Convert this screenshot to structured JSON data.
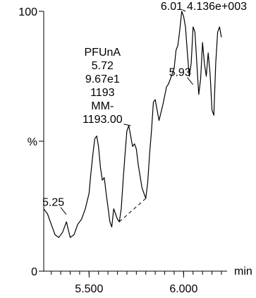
{
  "chart_data": {
    "type": "line",
    "title": "",
    "xlabel": "min",
    "ylabel": "%",
    "xlim": [
      5.26,
      6.23
    ],
    "ylim": [
      0,
      100
    ],
    "x_ticks": [
      {
        "value": 5.5,
        "label": "5.500"
      },
      {
        "value": 6.0,
        "label": "6.000"
      }
    ],
    "y_ticks": [
      {
        "value": 0,
        "label": "0"
      },
      {
        "value": 50,
        "label": "%"
      },
      {
        "value": 100,
        "label": "100"
      }
    ],
    "minor_tick_step": 0.05,
    "grid": false,
    "legend": "none",
    "series": [
      {
        "color": "#000000",
        "x": [
          5.26,
          5.28,
          5.3,
          5.32,
          5.34,
          5.36,
          5.38,
          5.39,
          5.4,
          5.42,
          5.44,
          5.46,
          5.48,
          5.5,
          5.51,
          5.52,
          5.53,
          5.54,
          5.55,
          5.56,
          5.57,
          5.58,
          5.59,
          5.61,
          5.62,
          5.63,
          5.64,
          5.65,
          5.66,
          5.67,
          5.68,
          5.69,
          5.7,
          5.71,
          5.72,
          5.73,
          5.74,
          5.75,
          5.76,
          5.78,
          5.8,
          5.81,
          5.82,
          5.83,
          5.84,
          5.85,
          5.87,
          5.89,
          5.91,
          5.92,
          5.93,
          5.95,
          5.96,
          5.97,
          5.98,
          5.99,
          6.0,
          6.01,
          6.02,
          6.03,
          6.04,
          6.05,
          6.06,
          6.07,
          6.08,
          6.09,
          6.1,
          6.11,
          6.12,
          6.13,
          6.14,
          6.15,
          6.16,
          6.17,
          6.18,
          6.19,
          6.2
        ],
        "y": [
          24,
          22,
          18,
          14,
          13,
          15,
          19,
          16,
          13,
          14,
          18,
          20,
          24,
          30,
          38,
          45,
          51,
          52,
          48,
          40,
          35,
          36,
          30,
          19,
          17,
          24,
          22,
          20,
          19,
          24,
          35,
          45,
          54,
          56,
          52,
          48,
          49,
          47,
          41,
          32,
          28,
          34,
          45,
          54,
          65,
          66,
          58,
          64,
          71,
          72,
          74,
          78,
          85,
          87,
          93,
          100,
          98,
          94,
          84,
          75,
          80,
          94,
          92,
          80,
          68,
          74,
          88,
          80,
          75,
          84,
          76,
          62,
          60,
          80,
          92,
          94,
          90
        ]
      }
    ],
    "dashed_segment": [
      {
        "x": 5.66,
        "y": 19
      },
      {
        "x": 5.8,
        "y": 28
      }
    ],
    "annotations": [
      {
        "lines": [
          "6.01",
          "4.136e+003"
        ],
        "x": 6.01,
        "y": 100,
        "side": "right"
      },
      {
        "lines": [
          "PFUnA",
          "5.72",
          "9.67e1",
          "1193",
          "MM-",
          "1193.00"
        ],
        "x": 5.72,
        "y": 56
      },
      {
        "lines": [
          "5.93"
        ],
        "x": 5.93,
        "y": 74
      },
      {
        "lines": [
          "5.25"
        ],
        "x": 5.26,
        "y": 24
      }
    ]
  }
}
